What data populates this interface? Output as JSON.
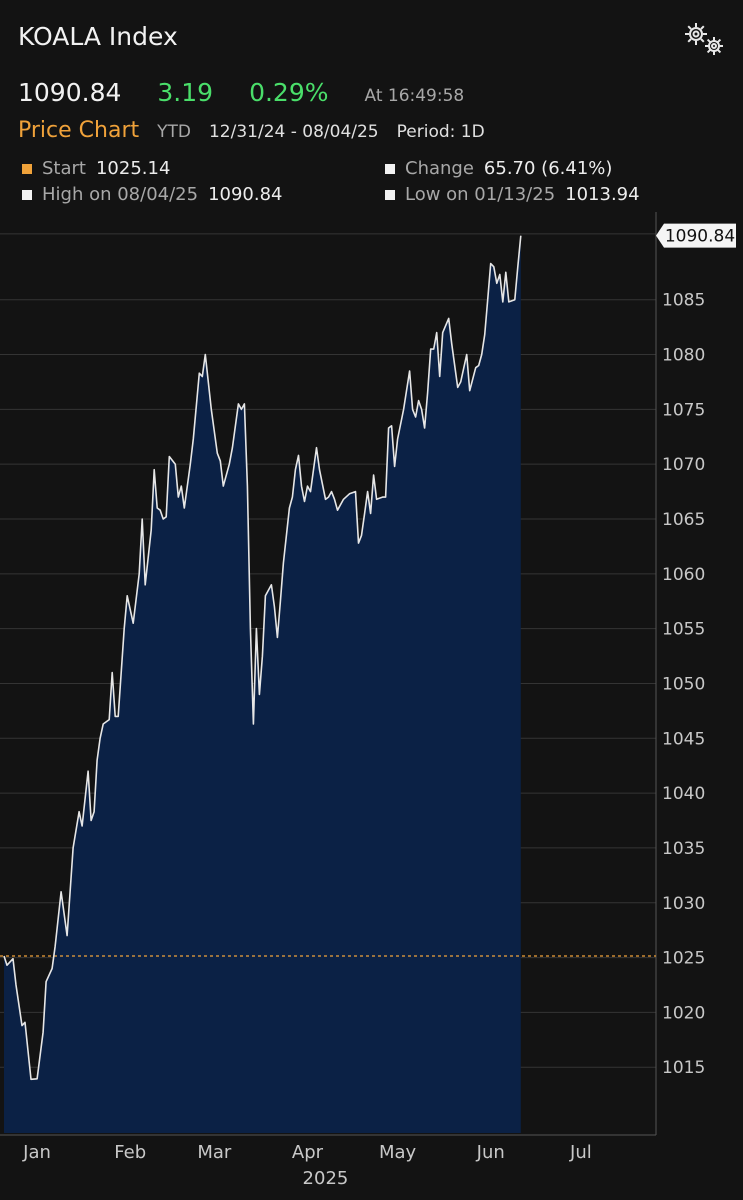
{
  "header": {
    "title": "KOALA Index",
    "last": "1090.84",
    "change": "3.19",
    "pct_change": "0.29%",
    "timestamp": "At 16:49:58",
    "settings_icon": "gears-icon"
  },
  "subheader": {
    "chart_title": "Price Chart",
    "range_code": "YTD",
    "date_range": "12/31/24 - 08/04/25",
    "period": "Period: 1D"
  },
  "stats": {
    "start_label": "Start",
    "start_value": "1025.14",
    "start_color": "#f0a23a",
    "change_label": "Change",
    "change_value": "65.70 (6.41%)",
    "high_label": "High on 08/04/25",
    "high_value": "1090.84",
    "low_label": "Low on 01/13/25",
    "low_value": "1013.94"
  },
  "colors": {
    "background": "#131313",
    "area_fill": "#0b2145",
    "line": "#e6e6e6",
    "start_line": "#f0a23a",
    "positive": "#4ade6a",
    "accent": "#f0a23a"
  },
  "chart_data": {
    "type": "area",
    "title": "Price Chart",
    "xlabel": "2025",
    "ylabel": "",
    "ylim": [
      1009,
      1093
    ],
    "yticks": [
      1015,
      1020,
      1025,
      1030,
      1035,
      1040,
      1045,
      1050,
      1055,
      1060,
      1065,
      1070,
      1075,
      1080,
      1085
    ],
    "xticks": [
      {
        "label": "Jan",
        "day": 10
      },
      {
        "label": "Feb",
        "day": 41
      },
      {
        "label": "Mar",
        "day": 69
      },
      {
        "label": "Apr",
        "day": 100
      },
      {
        "label": "May",
        "day": 130
      },
      {
        "label": "Jun",
        "day": 161
      },
      {
        "label": "Jul",
        "day": 191
      }
    ],
    "x_year_label": "2025",
    "x_domain": [
      -1,
      216
    ],
    "reference_line": {
      "label": "Start",
      "value": 1025.14
    },
    "last_label": "1090.84",
    "grid": true,
    "series": [
      {
        "values": [
          [
            -1,
            1025.14
          ],
          [
            0,
            1024.3
          ],
          [
            2,
            1024.9
          ],
          [
            3,
            1022.5
          ],
          [
            5,
            1018.8
          ],
          [
            6,
            1019.1
          ],
          [
            8,
            1013.9
          ],
          [
            10,
            1013.94
          ],
          [
            12,
            1018.2
          ],
          [
            13,
            1022.8
          ],
          [
            15,
            1024.0
          ],
          [
            16,
            1026.0
          ],
          [
            18,
            1031.0
          ],
          [
            20,
            1027.0
          ],
          [
            22,
            1035.0
          ],
          [
            24,
            1038.3
          ],
          [
            25,
            1037.0
          ],
          [
            27,
            1042.0
          ],
          [
            28,
            1037.5
          ],
          [
            29,
            1038.3
          ],
          [
            30,
            1043.0
          ],
          [
            31,
            1045.0
          ],
          [
            32,
            1046.3
          ],
          [
            34,
            1046.7
          ],
          [
            35,
            1051.0
          ],
          [
            36,
            1047.0
          ],
          [
            37,
            1047.0
          ],
          [
            39,
            1055.0
          ],
          [
            40,
            1058.0
          ],
          [
            42,
            1055.5
          ],
          [
            44,
            1060.0
          ],
          [
            45,
            1065.0
          ],
          [
            46,
            1059.0
          ],
          [
            48,
            1064.0
          ],
          [
            49,
            1069.5
          ],
          [
            50,
            1066.0
          ],
          [
            51,
            1065.8
          ],
          [
            52,
            1065.0
          ],
          [
            53,
            1065.2
          ],
          [
            54,
            1070.7
          ],
          [
            56,
            1070.0
          ],
          [
            57,
            1067.0
          ],
          [
            58,
            1068.0
          ],
          [
            59,
            1066.0
          ],
          [
            61,
            1070.0
          ],
          [
            62,
            1072.3
          ],
          [
            64,
            1078.3
          ],
          [
            65,
            1078.0
          ],
          [
            66,
            1080.0
          ],
          [
            68,
            1075.0
          ],
          [
            69,
            1073.0
          ],
          [
            70,
            1071.0
          ],
          [
            71,
            1070.3
          ],
          [
            72,
            1068.0
          ],
          [
            74,
            1070.0
          ],
          [
            75,
            1071.5
          ],
          [
            77,
            1075.5
          ],
          [
            78,
            1075.0
          ],
          [
            79,
            1075.5
          ],
          [
            80,
            1068.0
          ],
          [
            81,
            1055.0
          ],
          [
            82,
            1046.3
          ],
          [
            83,
            1055.0
          ],
          [
            84,
            1049.0
          ],
          [
            85,
            1052.5
          ],
          [
            86,
            1058.0
          ],
          [
            88,
            1059.0
          ],
          [
            89,
            1057.0
          ],
          [
            90,
            1054.2
          ],
          [
            91,
            1057.5
          ],
          [
            92,
            1061.0
          ],
          [
            94,
            1066.0
          ],
          [
            95,
            1067.0
          ],
          [
            96,
            1069.5
          ],
          [
            97,
            1070.8
          ],
          [
            98,
            1068.0
          ],
          [
            99,
            1066.6
          ],
          [
            100,
            1068.0
          ],
          [
            101,
            1067.5
          ],
          [
            103,
            1071.5
          ],
          [
            104,
            1069.5
          ],
          [
            106,
            1066.8
          ],
          [
            107,
            1067.0
          ],
          [
            108,
            1067.5
          ],
          [
            109,
            1066.8
          ],
          [
            110,
            1065.8
          ],
          [
            112,
            1066.8
          ],
          [
            114,
            1067.3
          ],
          [
            116,
            1067.5
          ],
          [
            117,
            1062.8
          ],
          [
            118,
            1063.5
          ],
          [
            119,
            1065.5
          ],
          [
            120,
            1067.5
          ],
          [
            121,
            1065.5
          ],
          [
            122,
            1069.0
          ],
          [
            123,
            1066.8
          ],
          [
            125,
            1067.0
          ],
          [
            126,
            1067.0
          ],
          [
            127,
            1073.3
          ],
          [
            128,
            1073.5
          ],
          [
            129,
            1069.8
          ],
          [
            130,
            1072.3
          ],
          [
            132,
            1075.0
          ],
          [
            134,
            1078.5
          ],
          [
            135,
            1075.0
          ],
          [
            136,
            1074.3
          ],
          [
            137,
            1075.8
          ],
          [
            138,
            1075.0
          ],
          [
            139,
            1073.3
          ],
          [
            140,
            1076.5
          ],
          [
            141,
            1080.5
          ],
          [
            142,
            1080.5
          ],
          [
            143,
            1082.0
          ],
          [
            144,
            1078.0
          ],
          [
            145,
            1082.0
          ],
          [
            147,
            1083.3
          ],
          [
            148,
            1081.0
          ],
          [
            150,
            1077.0
          ],
          [
            151,
            1077.5
          ],
          [
            153,
            1080.0
          ],
          [
            154,
            1076.7
          ],
          [
            156,
            1078.8
          ],
          [
            157,
            1079.0
          ],
          [
            158,
            1080.0
          ],
          [
            159,
            1081.8
          ],
          [
            160,
            1085.0
          ],
          [
            161,
            1088.3
          ],
          [
            162,
            1088.0
          ],
          [
            163,
            1086.5
          ],
          [
            164,
            1087.3
          ],
          [
            165,
            1084.8
          ],
          [
            166,
            1087.5
          ],
          [
            167,
            1084.8
          ],
          [
            169,
            1085.0
          ],
          [
            170,
            1088.0
          ],
          [
            171,
            1090.84
          ]
        ]
      }
    ]
  }
}
